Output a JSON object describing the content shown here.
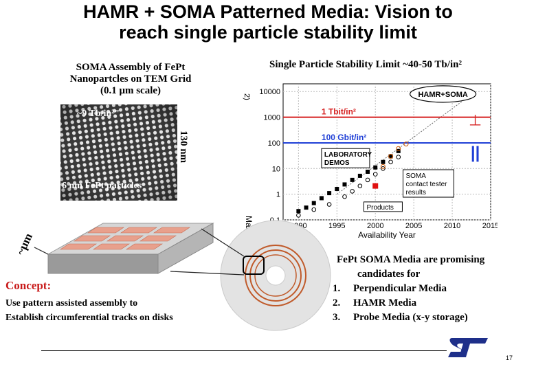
{
  "slide": {
    "title_line1": "HAMR + SOMA Patterned Media: Vision to",
    "title_line2": "reach single particle stability limit",
    "page_number": "17"
  },
  "tem": {
    "caption_line1": "SOMA Assembly of FePt",
    "caption_line2": "Nanopartcles on TEM Grid",
    "caption_line3": "(0.1 μm scale)",
    "density_label": "~9 Tb/in²\"",
    "particle_label": "6 nm FePt particles",
    "scale_label": "130 nm"
  },
  "stability": {
    "caption": "Single Particle Stability Limit ~40-50 Tb/in²"
  },
  "chart_data": {
    "type": "scatter",
    "title": "",
    "xlabel": "Availability Year",
    "ylabel": "Max Areal Density",
    "ylabel_fragment": "2)",
    "log_y": true,
    "xlim": [
      1988,
      2015
    ],
    "ylim": [
      0.1,
      20000
    ],
    "x_ticks": [
      "1990",
      "1995",
      "2000",
      "2005",
      "2010",
      "2015"
    ],
    "y_ticks": [
      "0.1",
      "1",
      "10",
      "100",
      "1000",
      "10000"
    ],
    "grid": true,
    "annotations": {
      "hamr_soma": "HAMR+SOMA",
      "tbit": "1 Tbit/in²",
      "gbit": "100 Gbit/in²",
      "lab_line1": "LABORATORY",
      "lab_line2": "DEMOS",
      "soma_line1": "SOMA",
      "soma_line2": "contact tester",
      "soma_line3": "results",
      "products": "Products",
      "perp_symbol": "⊥",
      "parallel_symbol": "||"
    },
    "series": [
      {
        "points": [
          [
            1990,
            0.22
          ],
          [
            1991,
            0.3
          ],
          [
            1992,
            0.45
          ],
          [
            1993,
            0.7
          ],
          [
            1994,
            1.1
          ],
          [
            1995,
            1.6
          ],
          [
            1996,
            2.4
          ],
          [
            1997,
            3.6
          ],
          [
            1998,
            5.2
          ],
          [
            1999,
            7.5
          ],
          [
            2000,
            11
          ],
          [
            2001,
            18
          ],
          [
            2002,
            30
          ],
          [
            2003,
            48
          ]
        ]
      },
      {
        "points": [
          [
            1990,
            0.15
          ],
          [
            1992,
            0.25
          ],
          [
            1994,
            0.4
          ],
          [
            1996,
            0.8
          ],
          [
            1997,
            1.3
          ],
          [
            1998,
            2.1
          ],
          [
            1999,
            3.6
          ],
          [
            2000,
            6
          ],
          [
            2001,
            10
          ],
          [
            2002,
            18
          ],
          [
            2003,
            28
          ]
        ]
      },
      {
        "points": [
          [
            2000,
            2.1
          ]
        ]
      },
      {
        "points": [
          [
            2001,
            12
          ],
          [
            2002,
            30
          ],
          [
            2003,
            60
          ],
          [
            2004,
            90
          ]
        ]
      }
    ],
    "trend_line": [
      [
        1995,
        1
      ],
      [
        2013,
        10000
      ]
    ],
    "colors": {
      "tbit_line": "#d62020",
      "gbit_line": "#1f3fd6",
      "series_dark": "#000000",
      "series_red": "#e01010",
      "series_open": "#cc5500"
    }
  },
  "concept": {
    "heading": "Concept:",
    "line1": "Use pattern assisted assembly to",
    "line2": "Establish circumferential tracks on disks"
  },
  "media": {
    "micron_label": "~μm",
    "intro_line1": "FePt SOMA Media are promising",
    "intro_line2": "candidates for",
    "items": [
      {
        "num": "1.",
        "label": "Perpendicular Media"
      },
      {
        "num": "2.",
        "label": "HAMR Media"
      },
      {
        "num": "3.",
        "label": "Probe Media (x-y storage)"
      }
    ]
  },
  "logo": {
    "name": "st-logo",
    "color": "#1e2f8a"
  }
}
